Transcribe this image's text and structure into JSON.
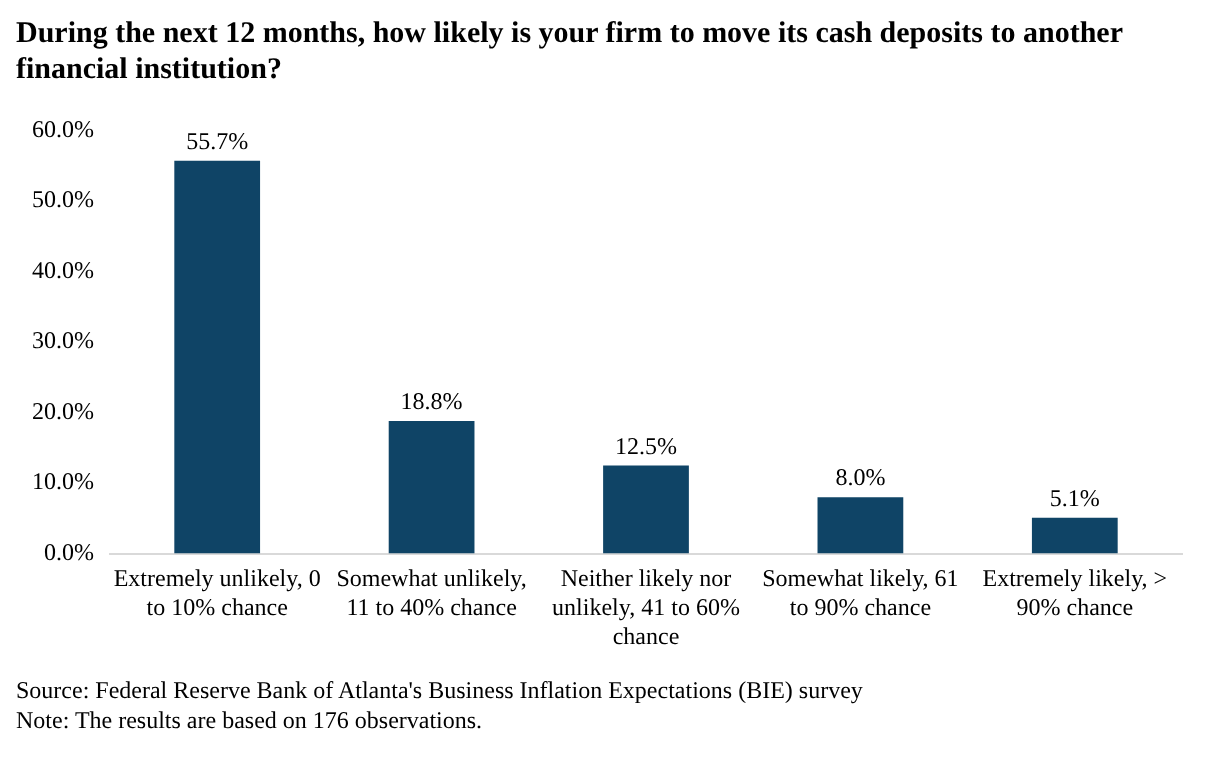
{
  "chart_data": {
    "type": "bar",
    "title": "During the next 12 months, how likely is your firm to move its cash deposits to another financial institution?",
    "categories": [
      "Extremely unlikely, 0 to 10% chance",
      "Somewhat unlikely, 11 to 40% chance",
      "Neither likely nor unlikely, 41 to 60% chance",
      "Somewhat likely, 61 to 90% chance",
      "Extremely likely, > 90% chance"
    ],
    "values": [
      55.7,
      18.8,
      12.5,
      8.0,
      5.1
    ],
    "value_labels": [
      "55.7%",
      "18.8%",
      "12.5%",
      "8.0%",
      "5.1%"
    ],
    "color": "#0f4466",
    "ylim": [
      0,
      60
    ],
    "yticks": [
      {
        "value": 0,
        "label": "0.0%"
      },
      {
        "value": 10,
        "label": "10.0%"
      },
      {
        "value": 20,
        "label": "20.0%"
      },
      {
        "value": 30,
        "label": "30.0%"
      },
      {
        "value": 40,
        "label": "40.0%"
      },
      {
        "value": 50,
        "label": "50.0%"
      },
      {
        "value": 60,
        "label": "60.0%"
      }
    ],
    "grid": false,
    "legend": false,
    "annotations": [
      "Source: Federal Reserve Bank of Atlanta's Business Inflation Expectations (BIE) survey",
      "Note: The results are based on 176 observations."
    ]
  }
}
